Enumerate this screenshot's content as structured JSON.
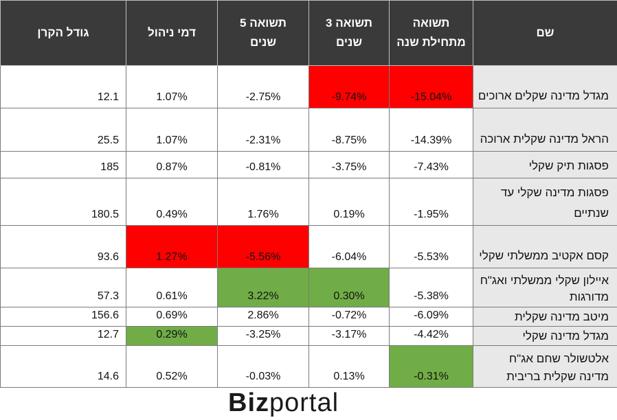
{
  "headers": {
    "size": "גודל הקרן",
    "fee": "דמי ניהול",
    "ret5": "תשואה 5\nשנים",
    "ret3": "תשואה 3\nשנים",
    "ytd": "תשואה\nמתחילת שנה",
    "name": "שם"
  },
  "rows": [
    {
      "name": "מגדל מדינה שקלים ארוכים",
      "ytd": "-15.04%",
      "ret3": "-9.74%",
      "ret5": "-2.75%",
      "fee": "1.07%",
      "size": "12.1"
    },
    {
      "name": "הראל מדינה שקלית ארוכה",
      "ytd": "-14.39%",
      "ret3": "-8.75%",
      "ret5": "-2.31%",
      "fee": "1.07%",
      "size": "25.5"
    },
    {
      "name": "פסגות תיק שקלי",
      "ytd": "-7.43%",
      "ret3": "-3.75%",
      "ret5": "-0.81%",
      "fee": "0.87%",
      "size": "185"
    },
    {
      "name": "פסגות מדינה שקלי עד שנתיים",
      "ytd": "-1.95%",
      "ret3": "0.19%",
      "ret5": "1.76%",
      "fee": "0.49%",
      "size": "180.5"
    },
    {
      "name": "קסם אקטיב ממשלתי שקלי",
      "ytd": "-5.53%",
      "ret3": "-6.04%",
      "ret5": "-5.56%",
      "fee": "1.27%",
      "size": "93.6"
    },
    {
      "name": "איילון שקלי ממשלתי ואג\"ח מדורגות",
      "ytd": "-5.38%",
      "ret3": "0.30%",
      "ret5": "3.22%",
      "fee": "0.61%",
      "size": "57.3"
    },
    {
      "name": "מיטב מדינה שקלית",
      "ytd": "-6.09%",
      "ret3": "-0.72%",
      "ret5": "2.86%",
      "fee": "0.69%",
      "size": "156.6"
    },
    {
      "name": "מגדל מדינה שקלי",
      "ytd": "-4.42%",
      "ret3": "-3.17%",
      "ret5": "-3.25%",
      "fee": "0.29%",
      "size": "12.7"
    },
    {
      "name": "אלטשולר שחם אג\"ח מדינה שקלית בריבית",
      "ytd": "-0.31%",
      "ret3": "0.13%",
      "ret5": "-0.03%",
      "fee": "0.52%",
      "size": "14.6"
    }
  ],
  "colors": {
    "header_bg": "#3a3a3a",
    "highlight_red": "#ff0000",
    "highlight_green": "#70ad47",
    "name_bg": "#e8e8e8"
  },
  "logo": {
    "part1": "Biz",
    "part2": "portal"
  }
}
